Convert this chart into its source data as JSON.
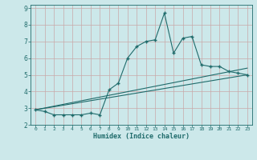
{
  "title": "",
  "xlabel": "Humidex (Indice chaleur)",
  "xlim": [
    -0.5,
    23.5
  ],
  "ylim": [
    2,
    9.2
  ],
  "xticks": [
    0,
    1,
    2,
    3,
    4,
    5,
    6,
    7,
    8,
    9,
    10,
    11,
    12,
    13,
    14,
    15,
    16,
    17,
    18,
    19,
    20,
    21,
    22,
    23
  ],
  "yticks": [
    2,
    3,
    4,
    5,
    6,
    7,
    8,
    9
  ],
  "bg_color": "#cce8ea",
  "line_color": "#1f6b6b",
  "grid_color": "#b8d8da",
  "line1_x": [
    0,
    1,
    2,
    3,
    4,
    5,
    6,
    7,
    8,
    9,
    10,
    11,
    12,
    13,
    14,
    15,
    16,
    17,
    18,
    19,
    20,
    21,
    22,
    23
  ],
  "line1_y": [
    2.9,
    2.8,
    2.6,
    2.6,
    2.6,
    2.6,
    2.7,
    2.6,
    4.1,
    4.5,
    6.0,
    6.7,
    7.0,
    7.1,
    8.7,
    6.3,
    7.2,
    7.3,
    5.6,
    5.5,
    5.5,
    5.2,
    5.1,
    5.0
  ],
  "line2_x": [
    0,
    23
  ],
  "line2_y": [
    2.9,
    5.4
  ],
  "line3_x": [
    0,
    23
  ],
  "line3_y": [
    2.9,
    5.0
  ]
}
